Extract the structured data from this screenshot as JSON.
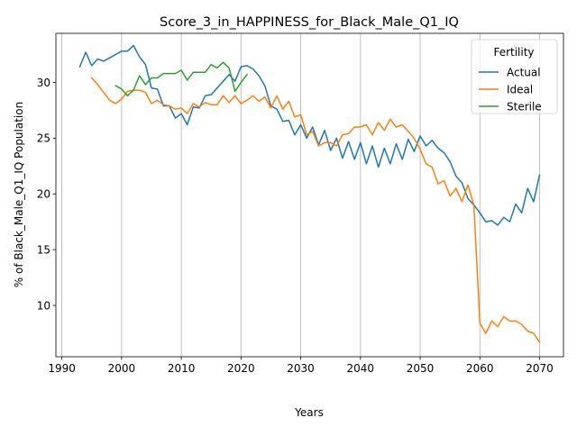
{
  "chart_data": {
    "type": "line",
    "title": "Score_3_in_HAPPINESS_for_Black_Male_Q1_IQ",
    "xlabel": "Years",
    "ylabel": "% of Black_Male_Q1_IQ Population",
    "xlim": [
      1989,
      2074
    ],
    "ylim": [
      5.4,
      34.4
    ],
    "xticks": [
      1990,
      2000,
      2010,
      2020,
      2030,
      2040,
      2050,
      2060,
      2070
    ],
    "yticks": [
      10,
      15,
      20,
      25,
      30
    ],
    "grid": "x-only",
    "legend": {
      "title": "Fertility",
      "placement": "top-right"
    },
    "colors": {
      "Actual": "#1f77b4",
      "Ideal": "#ff7f0e",
      "Sterile": "#2ca02c"
    },
    "series": [
      {
        "name": "Actual",
        "x": [
          1993,
          1994,
          1995,
          1996,
          1997,
          1998,
          1999,
          2000,
          2001,
          2002,
          2003,
          2004,
          2005,
          2006,
          2007,
          2008,
          2009,
          2010,
          2011,
          2012,
          2013,
          2014,
          2015,
          2016,
          2017,
          2018,
          2019,
          2020,
          2021,
          2022,
          2023,
          2024,
          2025,
          2026,
          2027,
          2028,
          2029,
          2030,
          2031,
          2032,
          2033,
          2034,
          2035,
          2036,
          2037,
          2038,
          2039,
          2040,
          2041,
          2042,
          2043,
          2044,
          2045,
          2046,
          2047,
          2048,
          2049,
          2050,
          2051,
          2052,
          2053,
          2054,
          2055,
          2056,
          2057,
          2058,
          2059,
          2060,
          2061,
          2062,
          2063,
          2064,
          2065,
          2066,
          2067,
          2068,
          2069,
          2070
        ],
        "values": [
          31.4,
          32.7,
          31.5,
          32.1,
          31.9,
          32.2,
          32.5,
          32.8,
          32.8,
          33.3,
          32.3,
          31.6,
          29.5,
          29.4,
          27.9,
          27.9,
          26.8,
          27.2,
          26.2,
          27.8,
          27.7,
          28.8,
          28.9,
          29.5,
          30.1,
          30.7,
          30.1,
          31.4,
          31.5,
          31.2,
          30.6,
          29.7,
          27.9,
          27.6,
          26.5,
          26.6,
          25.3,
          26.2,
          25.0,
          26.0,
          24.4,
          25.7,
          23.9,
          25.0,
          23.2,
          24.7,
          23.1,
          24.6,
          22.7,
          24.3,
          22.4,
          24.1,
          22.7,
          24.5,
          23.1,
          24.9,
          23.8,
          25.2,
          24.3,
          24.8,
          24.1,
          23.7,
          22.9,
          21.6,
          21.0,
          19.6,
          19.0,
          18.3,
          17.5,
          17.6,
          17.2,
          17.9,
          17.5,
          19.1,
          18.3,
          20.5,
          19.3,
          21.7
        ]
      },
      {
        "name": "Ideal",
        "x": [
          1995,
          1996,
          1997,
          1998,
          1999,
          2000,
          2001,
          2002,
          2003,
          2004,
          2005,
          2006,
          2007,
          2008,
          2009,
          2010,
          2011,
          2012,
          2013,
          2014,
          2015,
          2016,
          2017,
          2018,
          2019,
          2020,
          2021,
          2022,
          2023,
          2024,
          2025,
          2026,
          2027,
          2028,
          2029,
          2030,
          2031,
          2032,
          2033,
          2034,
          2035,
          2036,
          2037,
          2038,
          2039,
          2040,
          2041,
          2042,
          2043,
          2044,
          2045,
          2046,
          2047,
          2048,
          2049,
          2050,
          2051,
          2052,
          2053,
          2054,
          2055,
          2056,
          2057,
          2058,
          2059,
          2060,
          2061,
          2062,
          2063,
          2064,
          2065,
          2066,
          2067,
          2068,
          2069,
          2070
        ],
        "values": [
          30.4,
          29.8,
          29.1,
          28.4,
          28.1,
          28.5,
          29.2,
          29.3,
          29.3,
          29.1,
          28.1,
          28.4,
          28.0,
          27.9,
          27.6,
          27.7,
          27.2,
          28.1,
          27.8,
          28.2,
          28.0,
          28.0,
          28.8,
          28.2,
          28.8,
          28.1,
          28.4,
          28.8,
          28.3,
          28.7,
          27.7,
          28.8,
          27.6,
          28.3,
          26.9,
          27.1,
          25.3,
          25.6,
          24.3,
          24.6,
          24.6,
          24.3,
          25.3,
          25.4,
          26.0,
          26.0,
          26.2,
          25.3,
          26.4,
          25.7,
          26.7,
          26.0,
          26.2,
          25.6,
          25.0,
          24.0,
          22.7,
          22.4,
          20.9,
          21.2,
          19.8,
          20.5,
          19.3,
          20.8,
          19.0,
          8.4,
          7.5,
          8.6,
          8.1,
          9.0,
          8.6,
          8.6,
          8.3,
          7.7,
          7.5,
          6.7
        ]
      },
      {
        "name": "Sterile",
        "x": [
          1999,
          2000,
          2001,
          2002,
          2003,
          2004,
          2005,
          2006,
          2007,
          2008,
          2009,
          2010,
          2011,
          2012,
          2013,
          2014,
          2015,
          2016,
          2017,
          2018,
          2019,
          2020,
          2021
        ],
        "values": [
          29.7,
          29.4,
          28.8,
          29.3,
          30.6,
          29.8,
          30.4,
          30.4,
          30.8,
          30.8,
          30.8,
          31.1,
          30.2,
          30.9,
          30.9,
          30.9,
          31.6,
          31.3,
          31.8,
          31.3,
          29.2,
          30.0,
          30.7
        ]
      }
    ]
  }
}
